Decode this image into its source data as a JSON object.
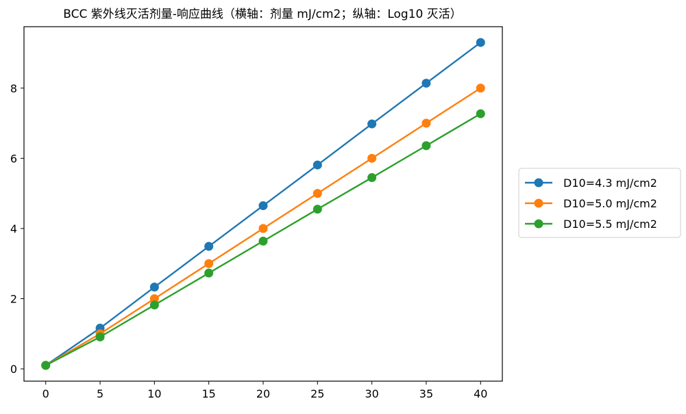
{
  "chart_data": {
    "type": "line",
    "title": "BCC 紫外线灭活剂量-响应曲线（横轴：剂量 mJ/cm2；纵轴：Log10 灭活）",
    "xlabel": "",
    "ylabel": "",
    "x": [
      0,
      5,
      10,
      15,
      20,
      25,
      30,
      35,
      40
    ],
    "xticks": [
      "0",
      "5",
      "10",
      "15",
      "20",
      "25",
      "30",
      "35",
      "40"
    ],
    "yticks": [
      "0",
      "2",
      "4",
      "6",
      "8"
    ],
    "xlim": [
      -2,
      42
    ],
    "ylim": [
      -0.35,
      9.75
    ],
    "grid": false,
    "legend_position": "right",
    "series": [
      {
        "name": "D10=4.3 mJ/cm2",
        "color": "#1f77b4",
        "marker": "circle",
        "values": [
          0.1,
          1.16,
          2.33,
          3.49,
          4.65,
          5.81,
          6.98,
          8.14,
          9.3
        ]
      },
      {
        "name": "D10=5.0 mJ/cm2",
        "color": "#ff7f0e",
        "marker": "circle",
        "values": [
          0.1,
          1.0,
          2.0,
          3.0,
          4.0,
          5.0,
          6.0,
          7.0,
          8.0
        ]
      },
      {
        "name": "D10=5.5 mJ/cm2",
        "color": "#2ca02c",
        "marker": "circle",
        "values": [
          0.1,
          0.91,
          1.82,
          2.73,
          3.64,
          4.55,
          5.45,
          6.36,
          7.27
        ]
      }
    ]
  }
}
